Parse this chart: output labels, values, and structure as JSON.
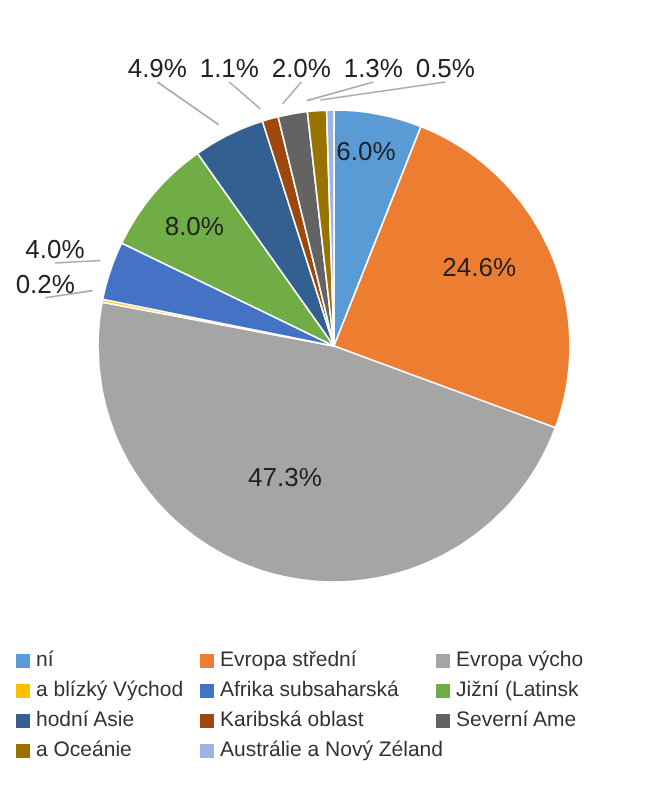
{
  "chart_data": {
    "type": "pie",
    "categories": [
      "ní",
      "Evropa střední",
      "Evropa výcho",
      "a blízký Východ",
      "Afrika subsaharská",
      "Jižní (Latinsk",
      "hodní Asie",
      "Karibská oblast",
      "Severní Ame",
      "a Oceánie",
      "Austrálie a Nový Zéland"
    ],
    "values": [
      6.0,
      24.6,
      47.3,
      0.2,
      4.0,
      8.0,
      4.9,
      1.1,
      2.0,
      1.3,
      0.5
    ],
    "colors": [
      "#5b9bd5",
      "#ed7d31",
      "#a5a5a5",
      "#ffc000",
      "#4472c4",
      "#70ad47",
      "#335f91",
      "#9e480e",
      "#636363",
      "#997300",
      "#9fb4e0"
    ],
    "value_labels": [
      "6.0%",
      "24.6%",
      "47.3%",
      "0.2%",
      "4.0%",
      "8.0%",
      "4.9%",
      "1.1%",
      "2.0%",
      "1.3%",
      "0.5%"
    ],
    "legend": "bottom"
  }
}
